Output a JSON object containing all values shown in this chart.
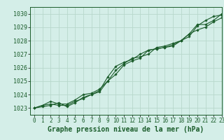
{
  "title": "Graphe pression niveau de la mer (hPa)",
  "background_color": "#d4eee8",
  "grid_color": "#b8d8cc",
  "line_color": "#1a5c2a",
  "xlim": [
    -0.5,
    23
  ],
  "ylim": [
    1022.5,
    1030.5
  ],
  "yticks": [
    1023,
    1024,
    1025,
    1026,
    1027,
    1028,
    1029,
    1030
  ],
  "xticks": [
    0,
    1,
    2,
    3,
    4,
    5,
    6,
    7,
    8,
    9,
    10,
    11,
    12,
    13,
    14,
    15,
    16,
    17,
    18,
    19,
    20,
    21,
    22,
    23
  ],
  "xtick_labels": [
    "0",
    "1",
    "2",
    "3",
    "4",
    "5",
    "6",
    "7",
    "8",
    "9",
    "10",
    "11",
    "12",
    "13",
    "14",
    "15",
    "16",
    "17",
    "18",
    "19",
    "20",
    "21",
    "22",
    "23"
  ],
  "series": [
    [
      1023.0,
      1023.2,
      1023.3,
      1023.2,
      1023.2,
      1023.5,
      1023.7,
      1024.0,
      1024.2,
      1025.0,
      1025.5,
      1026.2,
      1026.5,
      1026.7,
      1027.3,
      1027.4,
      1027.5,
      1027.6,
      1028.0,
      1028.3,
      1029.1,
      1029.5,
      1029.8,
      1029.9
    ],
    [
      1023.0,
      1023.1,
      1023.2,
      1023.4,
      1023.1,
      1023.4,
      1023.8,
      1024.0,
      1024.3,
      1025.3,
      1026.1,
      1026.4,
      1026.6,
      1027.0,
      1027.3,
      1027.4,
      1027.5,
      1027.7,
      1028.0,
      1028.5,
      1029.2,
      1029.2,
      1029.5,
      1030.0
    ],
    [
      1023.0,
      1023.2,
      1023.5,
      1023.3,
      1023.3,
      1023.6,
      1024.0,
      1024.1,
      1024.4,
      1025.0,
      1025.8,
      1026.3,
      1026.7,
      1026.8,
      1027.0,
      1027.5,
      1027.6,
      1027.8,
      1028.0,
      1028.5,
      1028.8,
      1029.0,
      1029.4,
      1029.7
    ]
  ],
  "marker": "D",
  "markersize": 1.8,
  "linewidth": 0.8,
  "title_fontsize": 7,
  "tick_fontsize": 5.5,
  "ytick_fontsize": 6
}
